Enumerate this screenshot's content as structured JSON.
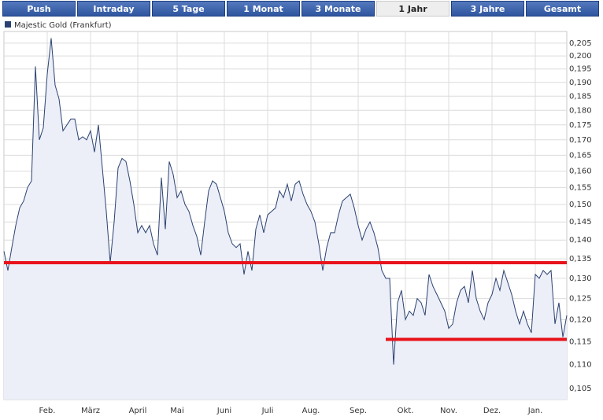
{
  "tabs": [
    "Push",
    "Intraday",
    "5 Tage",
    "1 Monat",
    "3 Monate",
    "1 Jahr",
    "3 Jahre",
    "Gesamt"
  ],
  "active_tab": 5,
  "chart_data": {
    "type": "line",
    "log_scale": true,
    "grid": true,
    "categories": [
      null,
      null,
      null,
      null,
      null,
      null,
      null,
      null,
      null,
      null,
      null,
      "Feb.",
      null,
      null,
      null,
      null,
      null,
      null,
      null,
      null,
      null,
      null,
      "März",
      null,
      null,
      null,
      null,
      null,
      null,
      null,
      null,
      null,
      null,
      null,
      "April",
      null,
      null,
      null,
      null,
      null,
      null,
      null,
      null,
      null,
      "Mai",
      null,
      null,
      null,
      null,
      null,
      null,
      null,
      null,
      null,
      null,
      null,
      "Juni",
      null,
      null,
      null,
      null,
      null,
      null,
      null,
      null,
      null,
      null,
      "Juli",
      null,
      null,
      null,
      null,
      null,
      null,
      null,
      null,
      null,
      null,
      "Aug.",
      null,
      null,
      null,
      null,
      null,
      null,
      null,
      null,
      null,
      null,
      null,
      "Sep.",
      null,
      null,
      null,
      null,
      null,
      null,
      null,
      null,
      null,
      null,
      null,
      "Okt.",
      null,
      null,
      null,
      null,
      null,
      null,
      null,
      null,
      null,
      null,
      "Nov.",
      null,
      null,
      null,
      null,
      null,
      null,
      null,
      null,
      null,
      null,
      "Dez.",
      null,
      null,
      null,
      null,
      null,
      null,
      null,
      null,
      null,
      null,
      "Jan.",
      null,
      null,
      null,
      null,
      null,
      null,
      null,
      null
    ],
    "series": [
      {
        "name": "Majestic Gold (Frankfurt)",
        "color": "#2b4170",
        "fill": "#eceff8",
        "values": [
          0.137,
          0.132,
          0.138,
          0.144,
          0.149,
          0.151,
          0.155,
          0.157,
          0.196,
          0.17,
          0.174,
          0.193,
          0.207,
          0.189,
          0.184,
          0.173,
          0.175,
          0.177,
          0.177,
          0.17,
          0.171,
          0.17,
          0.173,
          0.166,
          0.175,
          0.161,
          0.148,
          0.134,
          0.145,
          0.161,
          0.164,
          0.163,
          0.157,
          0.15,
          0.142,
          0.144,
          0.142,
          0.144,
          0.139,
          0.136,
          0.158,
          0.143,
          0.163,
          0.159,
          0.152,
          0.154,
          0.15,
          0.148,
          0.144,
          0.141,
          0.136,
          0.145,
          0.154,
          0.157,
          0.156,
          0.152,
          0.148,
          0.142,
          0.139,
          0.138,
          0.139,
          0.131,
          0.137,
          0.132,
          0.143,
          0.147,
          0.142,
          0.147,
          0.148,
          0.149,
          0.154,
          0.152,
          0.156,
          0.151,
          0.156,
          0.157,
          0.153,
          0.15,
          0.148,
          0.145,
          0.139,
          0.132,
          0.138,
          0.142,
          0.142,
          0.147,
          0.151,
          0.152,
          0.153,
          0.149,
          0.144,
          0.14,
          0.143,
          0.145,
          0.142,
          0.138,
          0.132,
          0.13,
          0.13,
          0.11,
          0.124,
          0.127,
          0.12,
          0.122,
          0.121,
          0.125,
          0.124,
          0.121,
          0.131,
          0.128,
          0.126,
          0.124,
          0.122,
          0.118,
          0.119,
          0.124,
          0.127,
          0.128,
          0.124,
          0.132,
          0.125,
          0.122,
          0.12,
          0.124,
          0.126,
          0.13,
          0.127,
          0.132,
          0.129,
          0.126,
          0.122,
          0.119,
          0.122,
          0.119,
          0.117,
          0.131,
          0.13,
          0.132,
          0.131,
          0.132,
          0.119,
          0.124,
          0.116,
          0.121
        ]
      }
    ],
    "hlines": [
      {
        "value": 0.134,
        "from": 0,
        "to": 143,
        "color": "#e8131b"
      },
      {
        "value": 0.1155,
        "from": 97,
        "to": 143,
        "color": "#e8131b"
      }
    ],
    "ylim": [
      0.1028,
      0.2097
    ],
    "yticks": [
      {
        "value": 0.105,
        "label": "0,105"
      },
      {
        "value": 0.11,
        "label": "0,110"
      },
      {
        "value": 0.115,
        "label": "0,115"
      },
      {
        "value": 0.12,
        "label": "0,120"
      },
      {
        "value": 0.125,
        "label": "0,125"
      },
      {
        "value": 0.13,
        "label": "0,130"
      },
      {
        "value": 0.135,
        "label": "0,135"
      },
      {
        "value": 0.14,
        "label": "0,140"
      },
      {
        "value": 0.145,
        "label": "0,145"
      },
      {
        "value": 0.15,
        "label": "0,150"
      },
      {
        "value": 0.155,
        "label": "0,155"
      },
      {
        "value": 0.16,
        "label": "0,160"
      },
      {
        "value": 0.165,
        "label": "0,165"
      },
      {
        "value": 0.17,
        "label": "0,170"
      },
      {
        "value": 0.175,
        "label": "0,175"
      },
      {
        "value": 0.18,
        "label": "0,180"
      },
      {
        "value": 0.185,
        "label": "0,185"
      },
      {
        "value": 0.19,
        "label": "0,190"
      },
      {
        "value": 0.195,
        "label": "0,195"
      },
      {
        "value": 0.2,
        "label": "0,200"
      },
      {
        "value": 0.205,
        "label": "0,205"
      }
    ]
  }
}
